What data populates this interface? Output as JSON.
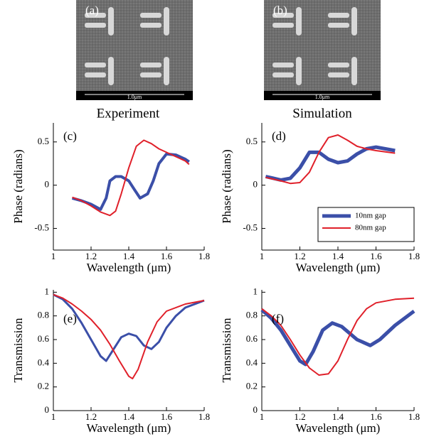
{
  "panels": [
    {
      "label": "(a)",
      "scale": "1.0μm",
      "caption": "Experiment"
    },
    {
      "label": "(b)",
      "scale": "1.0μm",
      "caption": "Simulation"
    }
  ],
  "chart_data": [
    {
      "type": "line",
      "annotation": "(c)",
      "xlabel": "Wavelength (μm)",
      "ylabel": "Phase (radians)",
      "xlim": [
        1,
        1.8
      ],
      "xticks": [
        1,
        1.2,
        1.4,
        1.6,
        1.8
      ],
      "ylim": [
        -0.75,
        0.72
      ],
      "yticks": [
        -0.5,
        0,
        0.5
      ],
      "series": [
        {
          "color": "#3b4fa8",
          "line_width": 4,
          "x": [
            1.1,
            1.15,
            1.2,
            1.25,
            1.28,
            1.3,
            1.33,
            1.36,
            1.4,
            1.43,
            1.46,
            1.5,
            1.53,
            1.56,
            1.6,
            1.65,
            1.7,
            1.72
          ],
          "values": [
            -0.15,
            -0.18,
            -0.22,
            -0.28,
            -0.15,
            0.05,
            0.1,
            0.1,
            0.05,
            -0.05,
            -0.15,
            -0.1,
            0.05,
            0.25,
            0.36,
            0.35,
            0.3,
            0.27
          ]
        },
        {
          "color": "#e0202a",
          "line_width": 2,
          "x": [
            1.1,
            1.15,
            1.2,
            1.25,
            1.3,
            1.33,
            1.36,
            1.4,
            1.44,
            1.48,
            1.52,
            1.56,
            1.6,
            1.65,
            1.7,
            1.72
          ],
          "values": [
            -0.14,
            -0.18,
            -0.24,
            -0.31,
            -0.35,
            -0.3,
            -0.1,
            0.2,
            0.45,
            0.52,
            0.48,
            0.42,
            0.38,
            0.33,
            0.28,
            0.24
          ]
        }
      ]
    },
    {
      "type": "line",
      "annotation": "(d)",
      "xlabel": "Wavelength (μm)",
      "ylabel": "Phase (radians)",
      "xlim": [
        1,
        1.8
      ],
      "xticks": [
        1,
        1.2,
        1.4,
        1.6,
        1.8
      ],
      "ylim": [
        -0.75,
        0.72
      ],
      "yticks": [
        -0.5,
        0,
        0.5
      ],
      "legend": "lower right",
      "series": [
        {
          "name": "10nm gap",
          "color": "#3b4fa8",
          "line_width": 5,
          "x": [
            1.02,
            1.1,
            1.15,
            1.2,
            1.25,
            1.3,
            1.35,
            1.4,
            1.45,
            1.5,
            1.55,
            1.6,
            1.7
          ],
          "values": [
            0.1,
            0.06,
            0.08,
            0.2,
            0.38,
            0.38,
            0.3,
            0.26,
            0.28,
            0.36,
            0.42,
            0.44,
            0.4
          ]
        },
        {
          "name": "80nm gap",
          "color": "#e0202a",
          "line_width": 2,
          "x": [
            1.02,
            1.1,
            1.15,
            1.2,
            1.25,
            1.3,
            1.35,
            1.4,
            1.45,
            1.5,
            1.55,
            1.6,
            1.7
          ],
          "values": [
            0.09,
            0.05,
            0.02,
            0.03,
            0.15,
            0.38,
            0.55,
            0.58,
            0.52,
            0.45,
            0.42,
            0.4,
            0.37
          ]
        }
      ]
    },
    {
      "type": "line",
      "annotation": "(e)",
      "xlabel": "Wavelength (μm)",
      "ylabel": "Transmission",
      "xlim": [
        1,
        1.8
      ],
      "xticks": [
        1,
        1.2,
        1.4,
        1.6,
        1.8
      ],
      "ylim": [
        0,
        1.02
      ],
      "yticks": [
        0,
        0.2,
        0.4,
        0.6,
        0.8,
        1
      ],
      "series": [
        {
          "color": "#3b4fa8",
          "line_width": 3,
          "x": [
            1,
            1.05,
            1.1,
            1.15,
            1.2,
            1.25,
            1.28,
            1.32,
            1.36,
            1.4,
            1.44,
            1.48,
            1.52,
            1.56,
            1.6,
            1.65,
            1.7,
            1.8
          ],
          "values": [
            0.98,
            0.94,
            0.86,
            0.74,
            0.6,
            0.46,
            0.42,
            0.52,
            0.62,
            0.65,
            0.63,
            0.55,
            0.52,
            0.58,
            0.7,
            0.8,
            0.87,
            0.93
          ]
        },
        {
          "color": "#e0202a",
          "line_width": 2,
          "x": [
            1,
            1.05,
            1.1,
            1.15,
            1.2,
            1.25,
            1.3,
            1.35,
            1.4,
            1.42,
            1.45,
            1.5,
            1.55,
            1.6,
            1.7,
            1.8
          ],
          "values": [
            0.98,
            0.95,
            0.9,
            0.84,
            0.77,
            0.68,
            0.56,
            0.42,
            0.29,
            0.27,
            0.35,
            0.58,
            0.75,
            0.84,
            0.9,
            0.93
          ]
        }
      ]
    },
    {
      "type": "line",
      "annotation": "(f)",
      "xlabel": "Wavelength (μm)",
      "ylabel": "Transmission",
      "xlim": [
        1,
        1.8
      ],
      "xticks": [
        1,
        1.2,
        1.4,
        1.6,
        1.8
      ],
      "ylim": [
        0,
        1.02
      ],
      "yticks": [
        0,
        0.2,
        0.4,
        0.6,
        0.8,
        1
      ],
      "series": [
        {
          "color": "#3b4fa8",
          "line_width": 5,
          "x": [
            1,
            1.05,
            1.1,
            1.15,
            1.2,
            1.23,
            1.27,
            1.32,
            1.37,
            1.42,
            1.5,
            1.57,
            1.62,
            1.7,
            1.8
          ],
          "values": [
            0.85,
            0.78,
            0.68,
            0.55,
            0.42,
            0.39,
            0.5,
            0.68,
            0.74,
            0.71,
            0.6,
            0.55,
            0.6,
            0.72,
            0.84
          ]
        },
        {
          "color": "#e0202a",
          "line_width": 2,
          "x": [
            1,
            1.05,
            1.1,
            1.15,
            1.2,
            1.25,
            1.3,
            1.35,
            1.4,
            1.45,
            1.5,
            1.55,
            1.6,
            1.7,
            1.8
          ],
          "values": [
            0.86,
            0.8,
            0.72,
            0.6,
            0.47,
            0.36,
            0.3,
            0.31,
            0.42,
            0.6,
            0.76,
            0.86,
            0.91,
            0.94,
            0.95
          ]
        }
      ]
    }
  ]
}
